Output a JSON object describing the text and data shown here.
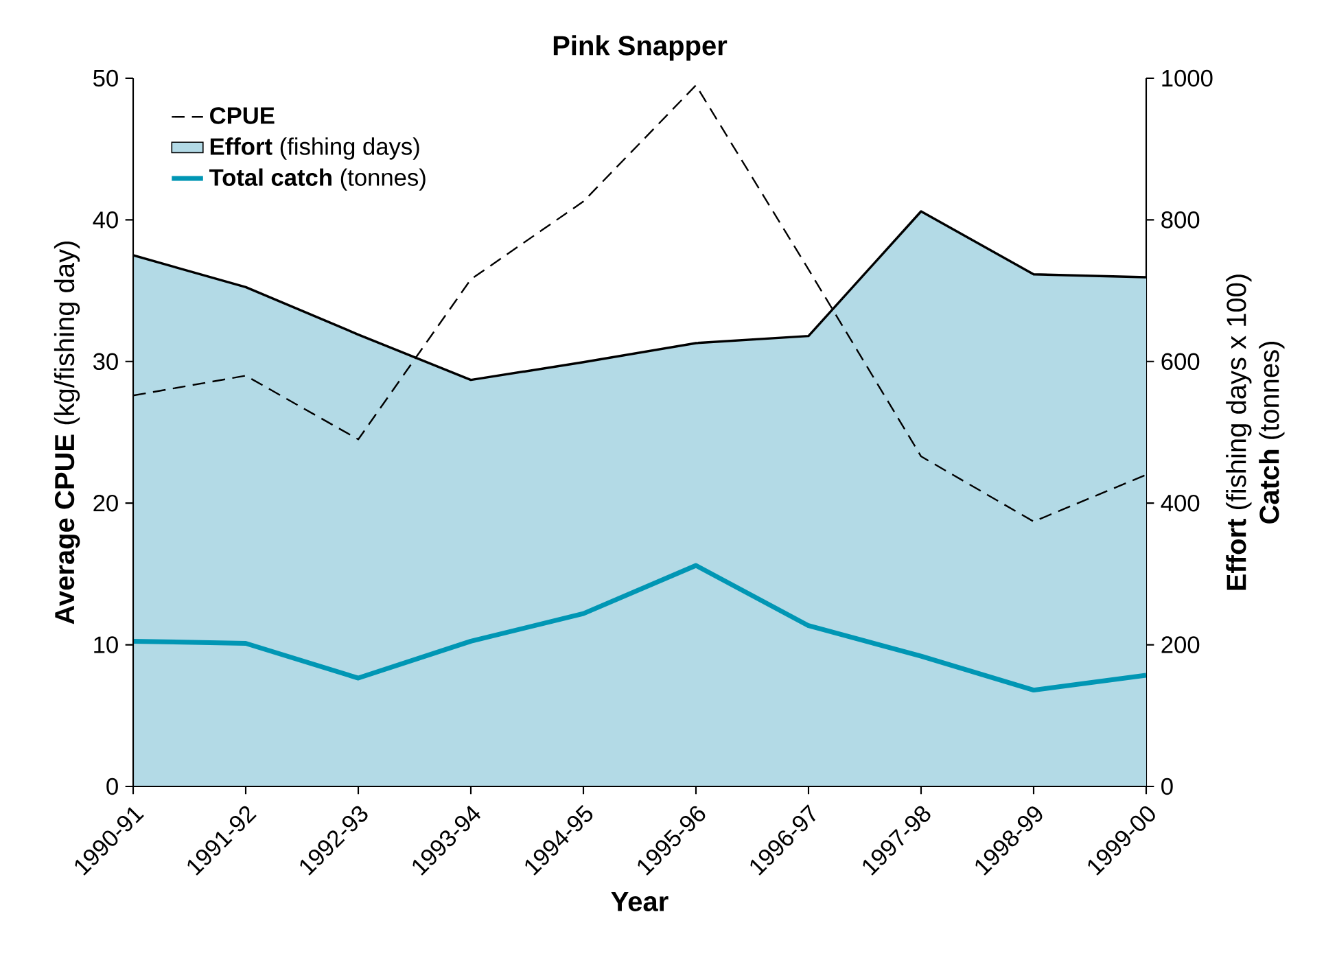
{
  "chart_data": {
    "type": "line",
    "title": "Pink Snapper",
    "xlabel": "Year",
    "ylabel": "**Average CPUE** (kg/fishing day)",
    "y2label": [
      "**Effort** (fishing days x 100)",
      "**Catch** (tonnes)"
    ],
    "categories": [
      "1990-91",
      "1991-92",
      "1992-93",
      "1993-94",
      "1994-95",
      "1995-96",
      "1996-97",
      "1997-98",
      "1998-99",
      "1999-00"
    ],
    "ylim": [
      0,
      50
    ],
    "yticks": [
      0,
      10,
      20,
      30,
      40,
      50
    ],
    "y2lim": [
      0,
      1000
    ],
    "y2ticks": [
      0,
      200,
      400,
      600,
      800,
      1000
    ],
    "legend": "top left",
    "series": [
      {
        "name": "**CPUE**",
        "line_style": "dashed",
        "color": "#000000",
        "values": [
          27.6,
          29.0,
          24.5,
          35.8,
          41.3,
          49.5,
          36.5,
          23.3,
          18.7,
          22.0
        ]
      },
      {
        "name": "**Effort** (fishing days)",
        "type": "area",
        "axis": "y2",
        "color": "#b3dae6",
        "values": [
          750,
          705,
          638,
          574,
          599,
          626,
          636,
          812,
          723,
          719
        ]
      },
      {
        "name": "**Total catch** (tonnes)",
        "axis": "y2",
        "line_style": "solid",
        "color": "#0096b4",
        "values": [
          205,
          202,
          153,
          205,
          244,
          312,
          227,
          184,
          136,
          157
        ]
      }
    ]
  }
}
